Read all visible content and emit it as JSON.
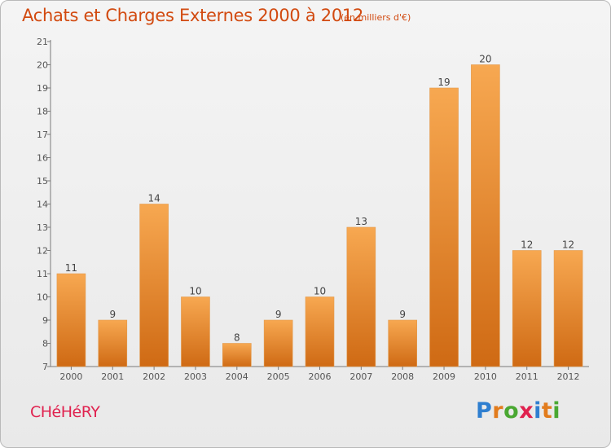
{
  "header": {
    "title": "Achats et Charges Externes 2000 à 2012",
    "subtitle": "(en milliers d'€)"
  },
  "footer": {
    "commune": "CHéHéRY",
    "logo": {
      "letters": [
        "P",
        "r",
        "o",
        "x",
        "i",
        "t",
        "i"
      ],
      "colors": [
        "#2f7fd0",
        "#e27c1d",
        "#4aa832",
        "#e0224f",
        "#2f7fd0",
        "#e27c1d",
        "#4aa832"
      ]
    }
  },
  "colors": {
    "bar_top": "#f7a851",
    "bar_bottom": "#cf6a14",
    "title": "#d24a10",
    "commune": "#e0224f"
  },
  "chart_data": {
    "type": "bar",
    "title": "Achats et Charges Externes 2000 à 2012",
    "subtitle": "(en milliers d'€)",
    "categories": [
      "2000",
      "2001",
      "2002",
      "2003",
      "2004",
      "2005",
      "2006",
      "2007",
      "2008",
      "2009",
      "2010",
      "2011",
      "2012"
    ],
    "values": [
      11,
      9,
      14,
      10,
      8,
      9,
      10,
      13,
      9,
      19,
      20,
      12,
      12
    ],
    "yticks": [
      "7",
      "8",
      "9",
      "10",
      "11",
      "12",
      "13",
      "14",
      "15",
      "16",
      "17",
      "18",
      "19",
      "20",
      "21"
    ],
    "ylim": [
      7,
      21
    ],
    "xlabel": "",
    "ylabel": "",
    "grid": false
  }
}
